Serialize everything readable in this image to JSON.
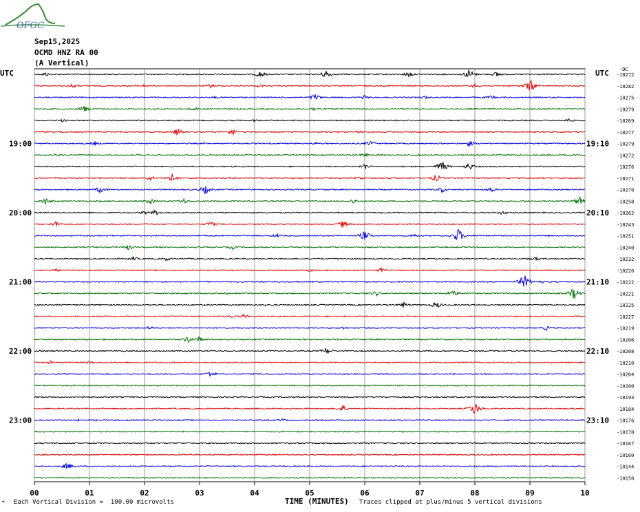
{
  "logo": {
    "text": "OFGC",
    "icon": "seismograph-logo-icon"
  },
  "header": {
    "date": "Sep15,2025",
    "station": "OCMD HNZ RA 00",
    "component": "(A Vertical)"
  },
  "axis": {
    "utc_left": "UTC",
    "utc_right": "UTC",
    "right_small": "-DC",
    "xlabel": "TIME (MINUTES)",
    "xticks": [
      "00",
      "01",
      "02",
      "03",
      "04",
      "05",
      "06",
      "07",
      "08",
      "09",
      "10"
    ]
  },
  "footer": {
    "marker": "^",
    "left_note": "Each Vertical Division =  100.00 microvolts",
    "right_note": "Traces clipped at plus/minus 5 vertical divisions"
  },
  "colors": {
    "cycle": [
      "#000000",
      "#e00000",
      "#0000e0",
      "#007000"
    ],
    "grid": "#999999"
  },
  "chart_data": {
    "type": "line",
    "title": "",
    "xlabel": "TIME (MINUTES)",
    "xlim": [
      0,
      10
    ],
    "hour_labels": [
      {
        "row": 6,
        "left": "19:00",
        "right": "19:10"
      },
      {
        "row": 12,
        "left": "20:00",
        "right": "20:10"
      },
      {
        "row": 18,
        "left": "21:00",
        "right": "21:10"
      },
      {
        "row": 24,
        "left": "22:00",
        "right": "22:10"
      },
      {
        "row": 30,
        "left": "23:00",
        "right": "23:10"
      }
    ],
    "dc_offsets": [
      "-10272",
      "-10282",
      "-10275",
      "-10279",
      "-10269",
      "-10277",
      "-10279",
      "-10272",
      "-10276",
      "-10271",
      "-10270",
      "-10258",
      "-10262",
      "-10243",
      "-10251",
      "-10240",
      "-10232",
      "-10226",
      "-10222",
      "-10221",
      "-10225",
      "-10227",
      "-10219",
      "-10206",
      "-10208",
      "-10210",
      "-10204",
      "-10200",
      "-10193",
      "-10184",
      "-10176",
      "-10170",
      "-10167",
      "-10160",
      "-10144",
      "-10150"
    ],
    "events": [
      [
        [
          0.2,
          1.5
        ],
        [
          4.1,
          2.5
        ],
        [
          5.3,
          3.0
        ],
        [
          6.8,
          2.0
        ],
        [
          7.9,
          3.5
        ],
        [
          8.4,
          2.0
        ]
      ],
      [
        [
          0.7,
          1.5
        ],
        [
          2.0,
          1.2
        ],
        [
          3.2,
          1.5
        ],
        [
          4.1,
          1.2
        ],
        [
          9.0,
          4.5
        ],
        [
          8.0,
          1.5
        ]
      ],
      [
        [
          3.3,
          1.0
        ],
        [
          5.1,
          2.5
        ],
        [
          6.0,
          1.5
        ],
        [
          7.1,
          1.2
        ],
        [
          8.3,
          1.5
        ]
      ],
      [
        [
          0.9,
          2.5
        ],
        [
          2.9,
          1.5
        ],
        [
          5.1,
          1.5
        ]
      ],
      [
        [
          0.5,
          1.2
        ],
        [
          4.0,
          1.0
        ],
        [
          9.7,
          1.5
        ]
      ],
      [
        [
          2.6,
          2.5
        ],
        [
          3.6,
          2.5
        ],
        [
          5.9,
          1.0
        ]
      ],
      [
        [
          1.1,
          1.5
        ],
        [
          5.1,
          1.0
        ],
        [
          6.1,
          2.0
        ],
        [
          7.9,
          2.0
        ]
      ],
      [
        [
          0.4,
          1.0
        ],
        [
          6.0,
          1.5
        ],
        [
          9.8,
          1.5
        ]
      ],
      [
        [
          6.0,
          2.0
        ],
        [
          7.4,
          4.0
        ],
        [
          7.9,
          2.5
        ]
      ],
      [
        [
          2.1,
          2.0
        ],
        [
          2.5,
          3.0
        ],
        [
          5.9,
          1.5
        ],
        [
          7.3,
          2.5
        ]
      ],
      [
        [
          1.2,
          2.5
        ],
        [
          3.1,
          3.0
        ],
        [
          7.4,
          2.0
        ],
        [
          8.3,
          2.0
        ]
      ],
      [
        [
          0.2,
          2.5
        ],
        [
          2.1,
          2.0
        ],
        [
          2.7,
          2.0
        ],
        [
          5.8,
          2.0
        ],
        [
          9.9,
          3.0
        ]
      ],
      [
        [
          2.0,
          1.5
        ],
        [
          2.2,
          2.0
        ],
        [
          8.5,
          1.5
        ]
      ],
      [
        [
          0.4,
          2.0
        ],
        [
          3.2,
          2.0
        ],
        [
          5.6,
          2.5
        ]
      ],
      [
        [
          4.4,
          1.5
        ],
        [
          6.0,
          3.5
        ],
        [
          6.9,
          1.5
        ],
        [
          7.7,
          5.0
        ]
      ],
      [
        [
          1.7,
          2.0
        ],
        [
          3.6,
          1.5
        ]
      ],
      [
        [
          1.8,
          1.5
        ],
        [
          2.4,
          1.5
        ],
        [
          9.1,
          1.5
        ]
      ],
      [
        [
          0.4,
          1.0
        ],
        [
          5.0,
          1.2
        ],
        [
          6.3,
          1.5
        ]
      ],
      [
        [
          8.9,
          5.0
        ],
        [
          9.2,
          1.2
        ]
      ],
      [
        [
          3.5,
          1.2
        ],
        [
          6.2,
          2.0
        ],
        [
          7.6,
          2.5
        ],
        [
          9.8,
          4.0
        ]
      ],
      [
        [
          6.7,
          2.0
        ],
        [
          7.3,
          2.5
        ]
      ],
      [
        [
          3.8,
          1.5
        ],
        [
          3.6,
          1.0
        ]
      ],
      [
        [
          2.1,
          1.5
        ],
        [
          5.6,
          1.2
        ],
        [
          9.3,
          1.5
        ]
      ],
      [
        [
          2.8,
          2.5
        ],
        [
          3.0,
          2.0
        ]
      ],
      [
        [
          5.3,
          2.5
        ]
      ],
      [
        [
          0.3,
          1.2
        ],
        [
          1.0,
          1.2
        ]
      ],
      [
        [
          3.2,
          2.5
        ]
      ],
      [],
      [],
      [
        [
          5.6,
          2.5
        ],
        [
          8.0,
          4.5
        ]
      ],
      [
        [
          4.5,
          1.2
        ],
        [
          0.8,
          0.8
        ]
      ],
      [],
      [],
      [],
      [
        [
          0.6,
          2.5
        ]
      ],
      []
    ]
  }
}
